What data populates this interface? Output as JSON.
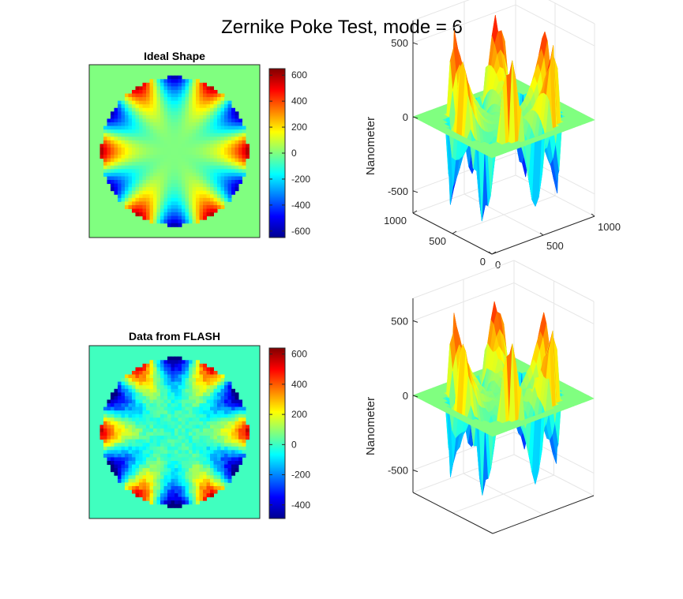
{
  "figure": {
    "title": "Zernike Poke Test, mode = 6"
  },
  "chart_data": [
    {
      "type": "heatmap",
      "title": "Ideal Shape",
      "colormap": "jet",
      "mode": 6,
      "colorbar": {
        "ticks": [
          600,
          400,
          200,
          0,
          -200,
          -400,
          -600
        ],
        "range": [
          -650,
          650
        ]
      },
      "amplitude": 600,
      "background_value": 75
    },
    {
      "type": "surface",
      "zlabel": "Nanometer",
      "colormap": "jet",
      "mode": 6,
      "x_ticks": [
        0,
        500,
        1000
      ],
      "y_ticks": [
        0,
        500,
        1000
      ],
      "z_ticks": [
        500,
        0,
        -500
      ],
      "xlim": [
        0,
        1000
      ],
      "ylim": [
        0,
        1000
      ],
      "zlim": [
        -650,
        650
      ],
      "amplitude": 600,
      "grid": true
    },
    {
      "type": "heatmap",
      "title": "Data from FLASH",
      "colormap": "jet",
      "mode": 6,
      "colorbar": {
        "ticks": [
          600,
          400,
          200,
          0,
          -200,
          -400
        ],
        "range": [
          -490,
          640
        ]
      },
      "amplitude": 560,
      "background_value": 0
    },
    {
      "type": "surface",
      "zlabel": "Nanometer",
      "colormap": "jet",
      "mode": 6,
      "z_ticks": [
        500,
        0,
        -500
      ],
      "zlim": [
        -650,
        650
      ],
      "amplitude": 560,
      "grid": true
    }
  ]
}
